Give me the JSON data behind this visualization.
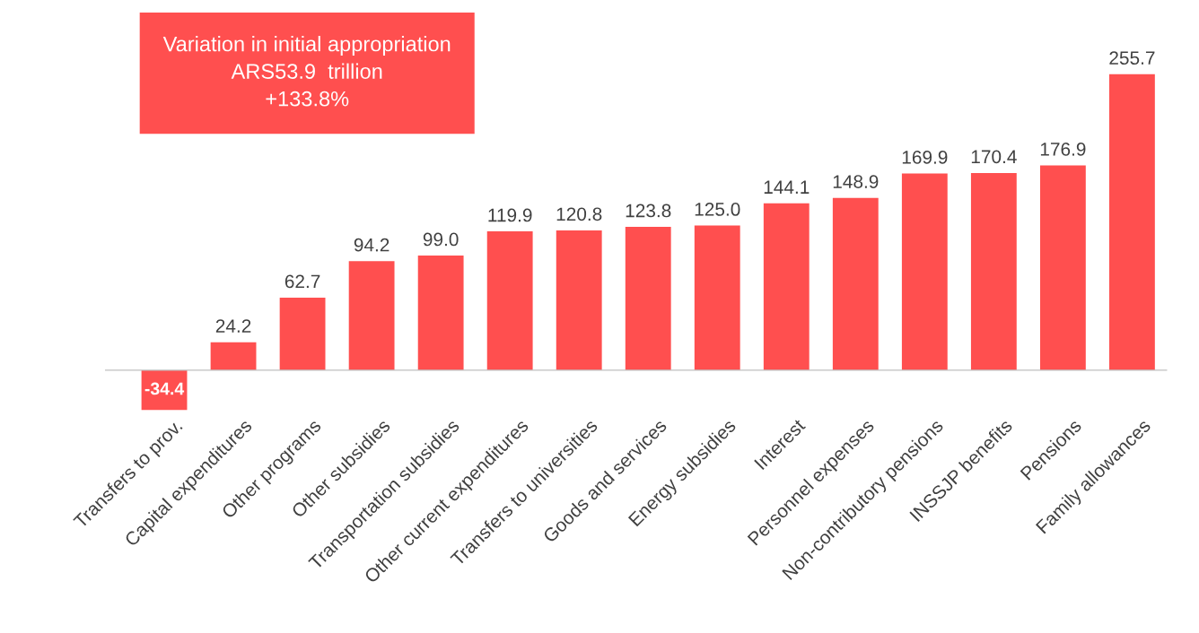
{
  "chart_data": {
    "type": "bar",
    "categories": [
      "Transfers to prov.",
      "Capital expenditures",
      "Other programs",
      "Other subsidies",
      "Transportation subsidies",
      "Other current expenditures",
      "Transfers to universities",
      "Goods and services",
      "Energy subsidies",
      "Interest",
      "Personnel expenses",
      "Non-contributory pensions",
      "INSSJP benefits",
      "Pensions",
      "Family allowances"
    ],
    "values": [
      -34.4,
      24.2,
      62.7,
      94.2,
      99.0,
      119.9,
      120.8,
      123.8,
      125.0,
      144.1,
      148.9,
      169.9,
      170.4,
      176.9,
      255.7
    ],
    "color": "#ff4f4f",
    "value_labels": [
      "-34.4",
      "24.2",
      "62.7",
      "94.2",
      "99.0",
      "119.9",
      "120.8",
      "123.8",
      "125.0",
      "144.1",
      "148.9",
      "169.9",
      "170.4",
      "176.9",
      "255.7"
    ],
    "annotations": [
      "Variation in initial appropriation\nARS53.9  trillion\n+133.8%"
    ]
  }
}
